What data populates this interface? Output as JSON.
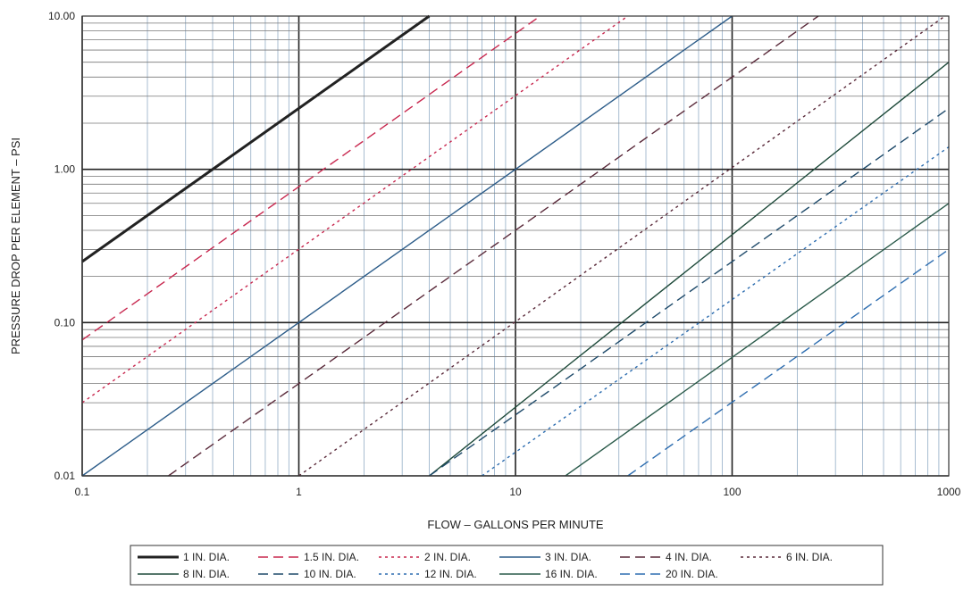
{
  "chart_data": {
    "type": "line",
    "xlabel": "FLOW – GALLONS PER MINUTE",
    "ylabel": "PRESSURE DROP PER ELEMENT – PSI",
    "x_scale": "log",
    "y_scale": "log",
    "xlim": [
      0.1,
      1000
    ],
    "ylim": [
      0.01,
      10
    ],
    "x_ticks": [
      0.1,
      1,
      10,
      100,
      1000
    ],
    "x_tick_labels": [
      "0.1",
      "1",
      "10",
      "100",
      "1000"
    ],
    "y_ticks": [
      0.01,
      0.1,
      1,
      10
    ],
    "y_tick_labels": [
      "0.01",
      "0.10",
      "1.00",
      "10.00"
    ],
    "grid": true,
    "legend_position": "bottom",
    "series": [
      {
        "name": "1 IN. DIA.",
        "color": "#222222",
        "dash": "solid",
        "width": 3,
        "x": [
          0.1,
          4
        ],
        "y": [
          0.25,
          10
        ]
      },
      {
        "name": "1.5 IN. DIA.",
        "color": "#c8284f",
        "dash": "dashed",
        "width": 1.4,
        "x": [
          0.1,
          13
        ],
        "y": [
          0.077,
          10
        ]
      },
      {
        "name": "2 IN. DIA.",
        "color": "#c8284f",
        "dash": "dotted",
        "width": 1.4,
        "x": [
          0.1,
          33
        ],
        "y": [
          0.03,
          10
        ]
      },
      {
        "name": "3 IN. DIA.",
        "color": "#2d5d8a",
        "dash": "solid",
        "width": 1.4,
        "x": [
          0.1,
          100
        ],
        "y": [
          0.01,
          10
        ]
      },
      {
        "name": "4 IN. DIA.",
        "color": "#5a2a3a",
        "dash": "dashed",
        "width": 1.4,
        "x": [
          0.25,
          250
        ],
        "y": [
          0.01,
          10
        ]
      },
      {
        "name": "6 IN. DIA.",
        "color": "#5a2a3a",
        "dash": "dotted",
        "width": 1.4,
        "x": [
          1,
          960
        ],
        "y": [
          0.01,
          10
        ]
      },
      {
        "name": "8 IN. DIA.",
        "color": "#1e4a3a",
        "dash": "solid",
        "width": 1.4,
        "x": [
          4,
          1000
        ],
        "y": [
          0.01,
          5
        ]
      },
      {
        "name": "10 IN. DIA.",
        "color": "#1e4a6a",
        "dash": "dashed",
        "width": 1.4,
        "x": [
          4,
          1000
        ],
        "y": [
          0.01,
          2.5
        ]
      },
      {
        "name": "12 IN. DIA.",
        "color": "#2d6db0",
        "dash": "dotted",
        "width": 1.4,
        "x": [
          7,
          1000
        ],
        "y": [
          0.01,
          1.4
        ]
      },
      {
        "name": "16 IN. DIA.",
        "color": "#2a5a4a",
        "dash": "solid",
        "width": 1.4,
        "x": [
          17,
          1000
        ],
        "y": [
          0.01,
          0.6
        ]
      },
      {
        "name": "20 IN. DIA.",
        "color": "#2d6db0",
        "dash": "dashed",
        "width": 1.4,
        "x": [
          33,
          1000
        ],
        "y": [
          0.01,
          0.3
        ]
      }
    ]
  }
}
